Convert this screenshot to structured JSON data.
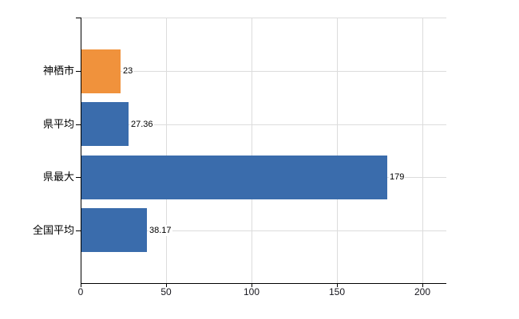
{
  "chart_data": {
    "type": "bar",
    "orientation": "horizontal",
    "title": "",
    "xlabel": "",
    "ylabel": "",
    "categories": [
      "神栖市",
      "県平均",
      "県最大",
      "全国平均"
    ],
    "values": [
      23,
      27.36,
      179,
      38.17
    ],
    "value_labels": [
      "23",
      "27.36",
      "179",
      "38.17"
    ],
    "bar_colors": [
      "#f0923c",
      "#3a6cac",
      "#3a6cac",
      "#3a6cac"
    ],
    "highlight_color": "#f0923c",
    "series_color": "#3a6cac",
    "x_ticks": [
      0,
      50,
      100,
      150,
      200
    ],
    "x_tick_labels": [
      "0",
      "50",
      "100",
      "150",
      "200"
    ],
    "xlim": [
      0,
      214
    ],
    "grid": true,
    "grid_color": "#dcdcdc",
    "axis_color": "#000000",
    "legend": "none",
    "background_color": "#ffffff"
  }
}
